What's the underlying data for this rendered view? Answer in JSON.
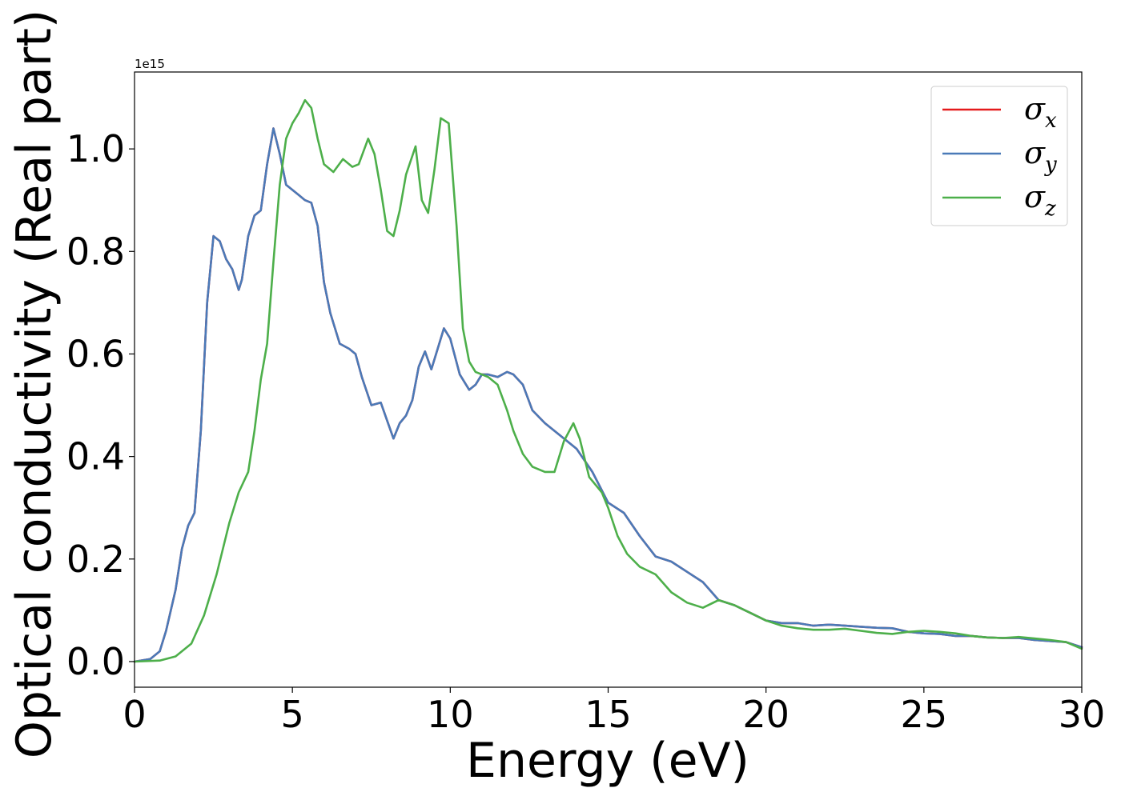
{
  "chart_data": {
    "type": "line",
    "xlabel": "Energy (eV)",
    "ylabel": "Optical conductivity (Real part)",
    "y_offset_label": "1e15",
    "xlim": [
      0,
      30
    ],
    "ylim": [
      -0.05,
      1.15
    ],
    "x_ticks": [
      0,
      5,
      10,
      15,
      20,
      25,
      30
    ],
    "x_tick_labels": [
      "0",
      "5",
      "10",
      "15",
      "20",
      "25",
      "30"
    ],
    "y_ticks": [
      0.0,
      0.2,
      0.4,
      0.6,
      0.8,
      1.0
    ],
    "y_tick_labels": [
      "0.0",
      "0.2",
      "0.4",
      "0.6",
      "0.8",
      "1.0"
    ],
    "grid": false,
    "legend_position": "top-right",
    "series": [
      {
        "name": "σx",
        "symbol": "σ",
        "subscript": "x",
        "color": "#e41a1c",
        "x": [
          0,
          0.5,
          0.8,
          1.0,
          1.3,
          1.5,
          1.7,
          1.9,
          2.1,
          2.3,
          2.5,
          2.7,
          2.9,
          3.1,
          3.3,
          3.4,
          3.6,
          3.8,
          4.0,
          4.2,
          4.4,
          4.6,
          4.8,
          5.0,
          5.2,
          5.4,
          5.6,
          5.8,
          6.0,
          6.2,
          6.5,
          6.8,
          7.0,
          7.2,
          7.5,
          7.8,
          8.0,
          8.2,
          8.4,
          8.6,
          8.8,
          9.0,
          9.2,
          9.4,
          9.6,
          9.8,
          10.0,
          10.3,
          10.6,
          10.8,
          11.0,
          11.2,
          11.5,
          11.8,
          12.0,
          12.3,
          12.6,
          13.0,
          13.5,
          14.0,
          14.5,
          15.0,
          15.5,
          16.0,
          16.5,
          17.0,
          17.5,
          18.0,
          18.5,
          19.0,
          19.5,
          20.0,
          20.5,
          21.0,
          21.5,
          22.0,
          22.5,
          23.0,
          23.5,
          24.0,
          24.5,
          25.0,
          25.5,
          26.0,
          26.5,
          27.0,
          27.5,
          28.0,
          28.5,
          29.0,
          29.5,
          30.0
        ],
        "y": [
          0,
          0.005,
          0.02,
          0.06,
          0.14,
          0.22,
          0.265,
          0.29,
          0.45,
          0.7,
          0.83,
          0.82,
          0.785,
          0.765,
          0.725,
          0.745,
          0.83,
          0.87,
          0.88,
          0.97,
          1.04,
          0.99,
          0.93,
          0.92,
          0.91,
          0.9,
          0.895,
          0.85,
          0.74,
          0.68,
          0.62,
          0.61,
          0.6,
          0.555,
          0.5,
          0.505,
          0.47,
          0.435,
          0.465,
          0.48,
          0.51,
          0.575,
          0.605,
          0.57,
          0.61,
          0.65,
          0.63,
          0.56,
          0.53,
          0.54,
          0.56,
          0.56,
          0.555,
          0.565,
          0.56,
          0.54,
          0.49,
          0.465,
          0.44,
          0.415,
          0.37,
          0.31,
          0.29,
          0.245,
          0.205,
          0.195,
          0.175,
          0.155,
          0.12,
          0.11,
          0.095,
          0.08,
          0.075,
          0.075,
          0.07,
          0.072,
          0.07,
          0.068,
          0.066,
          0.065,
          0.058,
          0.055,
          0.054,
          0.05,
          0.05,
          0.047,
          0.046,
          0.046,
          0.042,
          0.04,
          0.038,
          0.028
        ]
      },
      {
        "name": "σy",
        "symbol": "σ",
        "subscript": "y",
        "color": "#4a7ab8",
        "x": [
          0,
          0.5,
          0.8,
          1.0,
          1.3,
          1.5,
          1.7,
          1.9,
          2.1,
          2.3,
          2.5,
          2.7,
          2.9,
          3.1,
          3.3,
          3.4,
          3.6,
          3.8,
          4.0,
          4.2,
          4.4,
          4.6,
          4.8,
          5.0,
          5.2,
          5.4,
          5.6,
          5.8,
          6.0,
          6.2,
          6.5,
          6.8,
          7.0,
          7.2,
          7.5,
          7.8,
          8.0,
          8.2,
          8.4,
          8.6,
          8.8,
          9.0,
          9.2,
          9.4,
          9.6,
          9.8,
          10.0,
          10.3,
          10.6,
          10.8,
          11.0,
          11.2,
          11.5,
          11.8,
          12.0,
          12.3,
          12.6,
          13.0,
          13.5,
          14.0,
          14.5,
          15.0,
          15.5,
          16.0,
          16.5,
          17.0,
          17.5,
          18.0,
          18.5,
          19.0,
          19.5,
          20.0,
          20.5,
          21.0,
          21.5,
          22.0,
          22.5,
          23.0,
          23.5,
          24.0,
          24.5,
          25.0,
          25.5,
          26.0,
          26.5,
          27.0,
          27.5,
          28.0,
          28.5,
          29.0,
          29.5,
          30.0
        ],
        "y": [
          0,
          0.005,
          0.02,
          0.06,
          0.14,
          0.22,
          0.265,
          0.29,
          0.45,
          0.7,
          0.83,
          0.82,
          0.785,
          0.765,
          0.725,
          0.745,
          0.83,
          0.87,
          0.88,
          0.97,
          1.04,
          0.99,
          0.93,
          0.92,
          0.91,
          0.9,
          0.895,
          0.85,
          0.74,
          0.68,
          0.62,
          0.61,
          0.6,
          0.555,
          0.5,
          0.505,
          0.47,
          0.435,
          0.465,
          0.48,
          0.51,
          0.575,
          0.605,
          0.57,
          0.61,
          0.65,
          0.63,
          0.56,
          0.53,
          0.54,
          0.56,
          0.56,
          0.555,
          0.565,
          0.56,
          0.54,
          0.49,
          0.465,
          0.44,
          0.415,
          0.37,
          0.31,
          0.29,
          0.245,
          0.205,
          0.195,
          0.175,
          0.155,
          0.12,
          0.11,
          0.095,
          0.08,
          0.075,
          0.075,
          0.07,
          0.072,
          0.07,
          0.068,
          0.066,
          0.065,
          0.058,
          0.055,
          0.054,
          0.05,
          0.05,
          0.047,
          0.046,
          0.046,
          0.042,
          0.04,
          0.038,
          0.028
        ]
      },
      {
        "name": "σz",
        "symbol": "σ",
        "subscript": "z",
        "color": "#4daf4a",
        "x": [
          0,
          0.8,
          1.3,
          1.8,
          2.2,
          2.6,
          3.0,
          3.3,
          3.6,
          3.8,
          4.0,
          4.2,
          4.4,
          4.6,
          4.8,
          5.0,
          5.2,
          5.4,
          5.6,
          5.8,
          6.0,
          6.3,
          6.6,
          6.9,
          7.1,
          7.4,
          7.6,
          7.8,
          8.0,
          8.2,
          8.4,
          8.6,
          8.9,
          9.1,
          9.3,
          9.5,
          9.7,
          9.95,
          10.2,
          10.4,
          10.6,
          10.8,
          11.0,
          11.2,
          11.5,
          11.8,
          12.0,
          12.3,
          12.6,
          13.0,
          13.3,
          13.6,
          13.9,
          14.1,
          14.4,
          14.8,
          15.0,
          15.3,
          15.6,
          16.0,
          16.5,
          17.0,
          17.5,
          18.0,
          18.5,
          19.0,
          19.5,
          20.0,
          20.5,
          21.0,
          21.5,
          22.0,
          22.5,
          23.0,
          23.5,
          24.0,
          24.5,
          25.0,
          25.5,
          26.0,
          26.5,
          27.0,
          27.5,
          28.0,
          28.5,
          29.0,
          29.5,
          30.0
        ],
        "y": [
          0,
          0.002,
          0.01,
          0.035,
          0.09,
          0.17,
          0.27,
          0.33,
          0.37,
          0.45,
          0.55,
          0.62,
          0.78,
          0.93,
          1.02,
          1.05,
          1.07,
          1.095,
          1.08,
          1.02,
          0.97,
          0.955,
          0.98,
          0.965,
          0.97,
          1.02,
          0.99,
          0.92,
          0.84,
          0.83,
          0.88,
          0.95,
          1.005,
          0.9,
          0.875,
          0.96,
          1.06,
          1.05,
          0.85,
          0.65,
          0.585,
          0.565,
          0.56,
          0.555,
          0.54,
          0.49,
          0.45,
          0.405,
          0.38,
          0.37,
          0.37,
          0.43,
          0.465,
          0.435,
          0.36,
          0.33,
          0.3,
          0.245,
          0.21,
          0.185,
          0.17,
          0.135,
          0.115,
          0.105,
          0.12,
          0.11,
          0.095,
          0.08,
          0.07,
          0.065,
          0.062,
          0.062,
          0.064,
          0.06,
          0.056,
          0.054,
          0.058,
          0.06,
          0.058,
          0.055,
          0.05,
          0.047,
          0.046,
          0.048,
          0.045,
          0.042,
          0.038,
          0.025
        ]
      }
    ]
  }
}
